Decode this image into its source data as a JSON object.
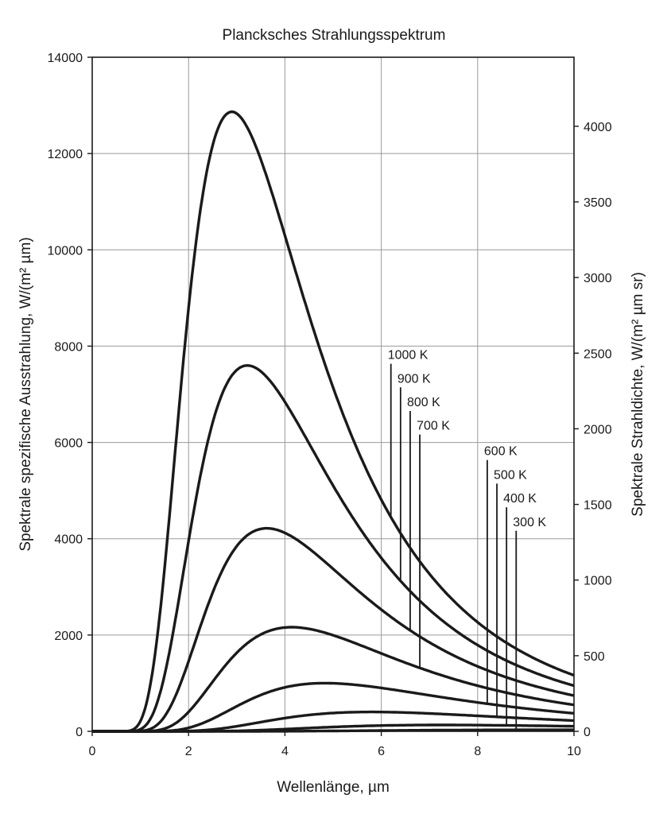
{
  "chart_data": {
    "type": "line",
    "title": "Plancksches Strahlungsspektrum",
    "xlabel": "Wellenlänge, µm",
    "ylabel": "Spektrale spezifische Ausstrahlung, W/(m² µm)",
    "y2label": "Spektrale Strahldichte, W/(m² µm sr)",
    "xlim": [
      0,
      10
    ],
    "ylim": [
      0,
      14000
    ],
    "y2lim": [
      0,
      4456.3
    ],
    "x_ticks": [
      "0",
      "2",
      "4",
      "6",
      "8",
      "10"
    ],
    "y_ticks": [
      "0",
      "2000",
      "4000",
      "6000",
      "8000",
      "10000",
      "12000",
      "14000"
    ],
    "y2_ticks": [
      "0",
      "500",
      "1000",
      "1500",
      "2000",
      "2500",
      "3000",
      "3500",
      "4000"
    ],
    "grid": true,
    "series": [
      {
        "name": "1000 K",
        "temperature": 1000,
        "label_x": 6.2,
        "label_y": 7700
      },
      {
        "name": "900 K",
        "temperature": 900,
        "label_x": 6.4,
        "label_y": 7210
      },
      {
        "name": "800 K",
        "temperature": 800,
        "label_x": 6.6,
        "label_y": 6720
      },
      {
        "name": "700 K",
        "temperature": 700,
        "label_x": 6.8,
        "label_y": 6230
      },
      {
        "name": "600 K",
        "temperature": 600,
        "label_x": 8.2,
        "label_y": 5700
      },
      {
        "name": "500 K",
        "temperature": 500,
        "label_x": 8.4,
        "label_y": 5210
      },
      {
        "name": "400 K",
        "temperature": 400,
        "label_x": 8.6,
        "label_y": 4720
      },
      {
        "name": "300 K",
        "temperature": 300,
        "label_x": 8.8,
        "label_y": 4230
      }
    ],
    "peak_values": {
      "1000 K": {
        "x": 2.9,
        "y": 12850
      },
      "900 K": {
        "x": 3.2,
        "y": 7600
      },
      "800 K": {
        "x": 3.62,
        "y": 4220
      },
      "700 K": {
        "x": 4.14,
        "y": 2160
      },
      "600 K": {
        "x": 4.83,
        "y": 1010
      },
      "500 K": {
        "x": 5.8,
        "y": 405
      },
      "400 K": {
        "x": 7.2,
        "y": 135
      }
    },
    "colors": {
      "curve": "#1a1a1a",
      "grid": "#9a9a9a",
      "axis": "#1a1a1a"
    }
  }
}
